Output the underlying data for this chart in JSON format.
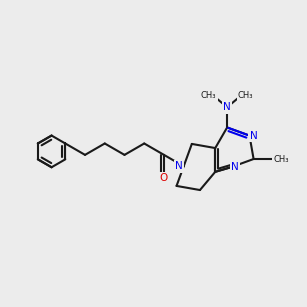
{
  "bg_color": "#ececec",
  "bond_color": "#1a1a1a",
  "N_color": "#0000ee",
  "O_color": "#dd0000",
  "lw": 1.5,
  "lw_ring": 1.5,
  "figsize": [
    3.0,
    3.0
  ],
  "dpi": 100,
  "BL": 23,
  "Pr": 16,
  "font_size": 7.5
}
